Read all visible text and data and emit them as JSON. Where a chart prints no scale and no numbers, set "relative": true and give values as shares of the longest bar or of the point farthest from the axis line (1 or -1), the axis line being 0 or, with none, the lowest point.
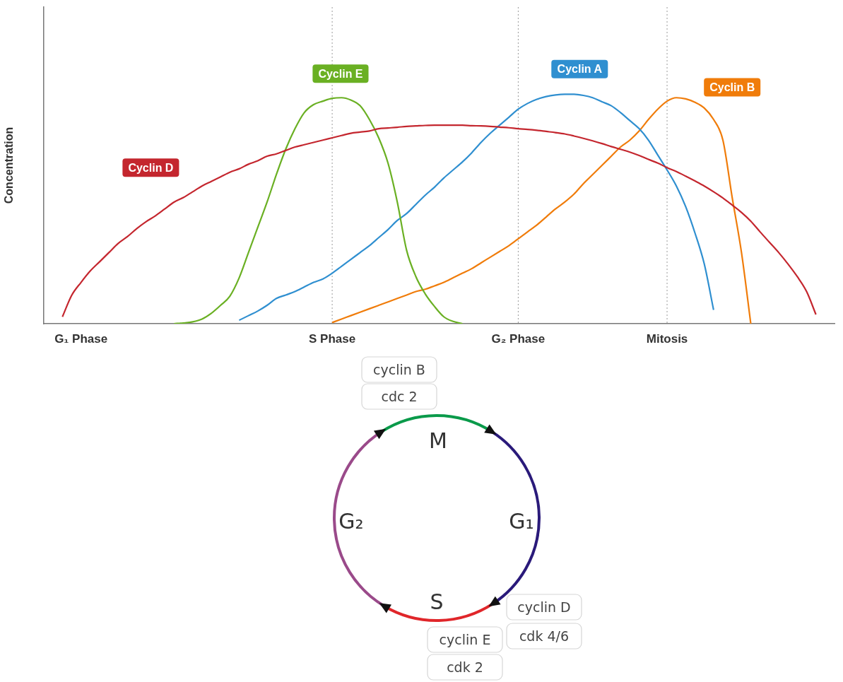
{
  "chart_data": {
    "type": "line",
    "ylabel": "Concentration",
    "relative": true,
    "grid": false,
    "marker": "none",
    "categories": [
      null,
      null,
      null,
      null,
      "G₁ Phase",
      null,
      null,
      null,
      null,
      null,
      null,
      null,
      null,
      null,
      null,
      null,
      null,
      null,
      null,
      null,
      null,
      null,
      null,
      null,
      null,
      null,
      null,
      null,
      null,
      null,
      null,
      "S Phase",
      null,
      null,
      null,
      null,
      null,
      null,
      null,
      null,
      null,
      null,
      null,
      null,
      null,
      null,
      null,
      null,
      null,
      null,
      null,
      "G₂ Phase",
      null,
      null,
      null,
      null,
      null,
      null,
      null,
      null,
      null,
      null,
      null,
      null,
      null,
      null,
      null,
      "Mitosis",
      null,
      null,
      null,
      null,
      null,
      null,
      null,
      null,
      null,
      null,
      null,
      null,
      null,
      null,
      null,
      null,
      null,
      null
    ],
    "series": [
      {
        "name": "Cyclin D",
        "color": "#c4262e",
        "values": [
          null,
          null,
          0.03,
          0.124,
          0.18,
          0.23,
          0.27,
          0.31,
          0.35,
          0.38,
          0.415,
          0.445,
          0.47,
          0.5,
          0.53,
          0.55,
          0.575,
          0.6,
          0.62,
          0.64,
          0.66,
          0.675,
          0.695,
          0.71,
          0.73,
          0.74,
          0.755,
          0.77,
          0.78,
          0.79,
          0.8,
          0.81,
          0.82,
          0.83,
          0.835,
          0.84,
          0.85,
          0.853,
          0.856,
          0.86,
          0.862,
          0.864,
          0.865,
          0.865,
          0.865,
          0.865,
          0.863,
          0.862,
          0.86,
          0.857,
          0.854,
          0.85,
          0.847,
          0.843,
          0.838,
          0.833,
          0.827,
          0.818,
          0.808,
          0.797,
          0.785,
          0.772,
          0.76,
          0.748,
          0.733,
          0.716,
          0.7,
          0.68,
          0.663,
          0.643,
          0.622,
          0.6,
          0.575,
          0.548,
          0.517,
          0.485,
          0.447,
          0.4,
          0.355,
          0.31,
          0.26,
          0.205,
          0.14,
          0.04,
          null,
          null
        ]
      },
      {
        "name": "Cyclin E",
        "color": "#6ab023",
        "values": [
          null,
          null,
          null,
          null,
          null,
          null,
          null,
          null,
          null,
          null,
          null,
          null,
          null,
          null,
          0,
          0.003,
          0.008,
          0.02,
          0.045,
          0.08,
          0.12,
          0.2,
          0.31,
          0.42,
          0.53,
          0.65,
          0.76,
          0.85,
          0.92,
          0.955,
          0.97,
          0.982,
          0.985,
          0.975,
          0.95,
          0.89,
          0.81,
          0.7,
          0.53,
          0.32,
          0.205,
          0.13,
          0.075,
          0.03,
          0.01,
          0,
          null,
          null,
          null,
          null,
          null,
          null,
          null,
          null,
          null,
          null,
          null,
          null,
          null,
          null,
          null,
          null,
          null,
          null,
          null,
          null,
          null,
          null,
          null,
          null,
          null,
          null,
          null,
          null,
          null,
          null,
          null,
          null,
          null,
          null,
          null,
          null,
          null,
          null,
          null,
          null
        ]
      },
      {
        "name": "Cyclin A",
        "color": "#2f8fd0",
        "values": [
          null,
          null,
          null,
          null,
          null,
          null,
          null,
          null,
          null,
          null,
          null,
          null,
          null,
          null,
          null,
          null,
          null,
          null,
          null,
          null,
          null,
          0.015,
          0.035,
          0.055,
          0.08,
          0.11,
          0.125,
          0.14,
          0.16,
          0.18,
          0.195,
          0.22,
          0.25,
          0.28,
          0.31,
          0.34,
          0.375,
          0.41,
          0.45,
          0.48,
          0.52,
          0.56,
          0.595,
          0.635,
          0.67,
          0.705,
          0.745,
          0.79,
          0.83,
          0.865,
          0.9,
          0.935,
          0.96,
          0.978,
          0.99,
          0.997,
          1,
          1,
          0.995,
          0.985,
          0.967,
          0.95,
          0.92,
          0.885,
          0.85,
          0.8,
          0.735,
          0.67,
          0.6,
          0.51,
          0.395,
          0.26,
          0.06,
          null,
          null,
          null,
          null,
          null,
          null,
          null,
          null,
          null,
          null,
          null,
          null,
          null
        ]
      },
      {
        "name": "Cyclin B",
        "color": "#f07c0a",
        "values": [
          null,
          null,
          null,
          null,
          null,
          null,
          null,
          null,
          null,
          null,
          null,
          null,
          null,
          null,
          null,
          null,
          null,
          null,
          null,
          null,
          null,
          null,
          null,
          null,
          null,
          null,
          null,
          null,
          null,
          null,
          null,
          0.005,
          0.02,
          0.035,
          0.05,
          0.065,
          0.08,
          0.095,
          0.11,
          0.125,
          0.14,
          0.15,
          0.165,
          0.18,
          0.2,
          0.22,
          0.24,
          0.265,
          0.29,
          0.315,
          0.34,
          0.37,
          0.4,
          0.43,
          0.465,
          0.5,
          0.53,
          0.565,
          0.61,
          0.65,
          0.69,
          0.73,
          0.77,
          0.8,
          0.84,
          0.89,
          0.935,
          0.97,
          0.985,
          0.98,
          0.965,
          0.94,
          0.89,
          0.8,
          0.55,
          0.31,
          0,
          null,
          null,
          null,
          null,
          null,
          null,
          null,
          null,
          null
        ]
      }
    ],
    "ref_lines": [
      {
        "axis": "x",
        "value": "S Phase",
        "color": "#9a9a9a",
        "line_style": "dotted"
      },
      {
        "axis": "x",
        "value": "G₂ Phase",
        "color": "#9a9a9a",
        "line_style": "dotted"
      },
      {
        "axis": "x",
        "value": "Mitosis",
        "color": "#9a9a9a",
        "line_style": "dotted"
      }
    ],
    "annotations": [
      "cyclin B",
      "cdc 2",
      "M",
      "G₂",
      "G₁",
      "S",
      "cyclin D",
      "cdk 4/6",
      "cyclin E",
      "cdk 2"
    ]
  }
}
